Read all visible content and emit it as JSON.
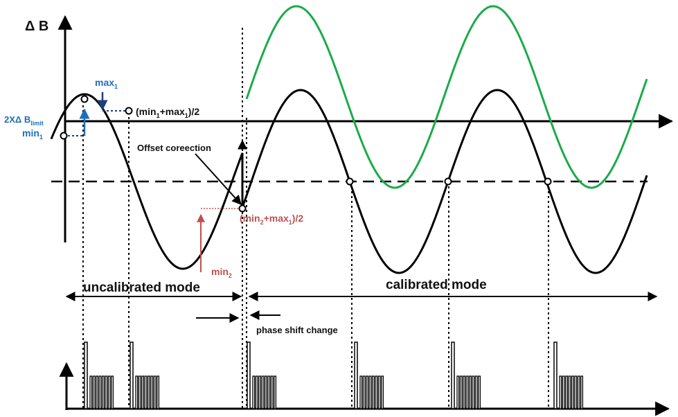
{
  "colors": {
    "black": "#000000",
    "blue": "#1e6fb8",
    "dark_blue": "#1f3f7a",
    "red": "#c0504d",
    "green": "#1aab48"
  },
  "labels": {
    "axis_y": "Δ B",
    "max1": "max",
    "max1_sub": "1",
    "avg1": "(min",
    "avg1_sub_a": "1",
    "avg1_mid": "+max",
    "avg1_sub_b": "1",
    "avg1_end": ")/2",
    "limit_a": "2XΔ B",
    "limit_sub": "limit",
    "min1": "min",
    "min1_sub": "1",
    "offset": "Offset coreection",
    "avg2": "(min",
    "avg2_sub_a": "2",
    "avg2_mid": "+max",
    "avg2_sub_b": "1",
    "avg2_end": ")/2",
    "min2": "min",
    "min2_sub": "2",
    "uncalibrated": "uncalibrated mode",
    "calibrated": "calibrated mode",
    "phase_shift": "phase shift change"
  }
}
